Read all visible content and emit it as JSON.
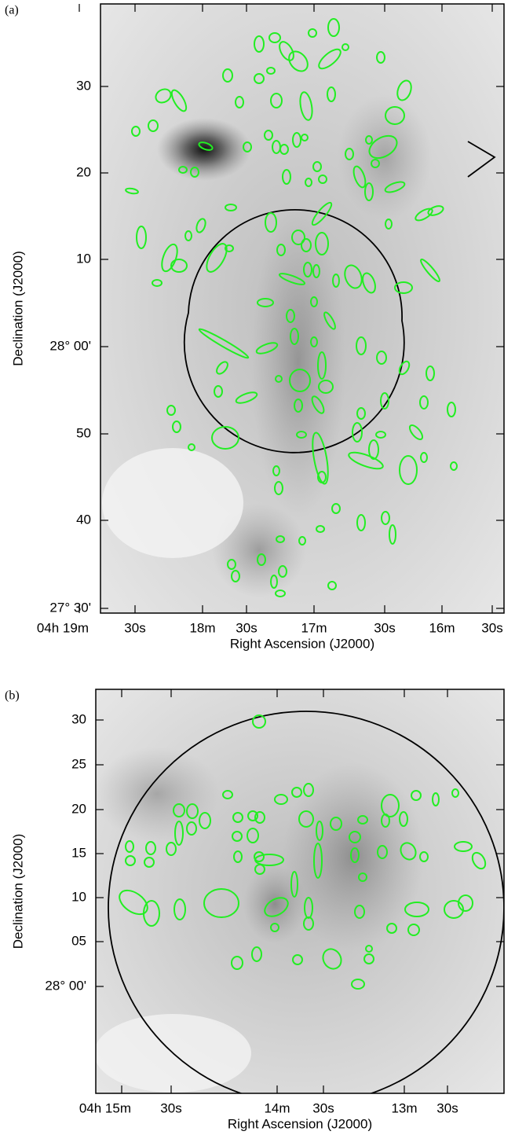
{
  "panels": [
    {
      "label": "(a)",
      "x_label": "Right Ascension (J2000)",
      "y_label": "Declination (J2000)",
      "x_ticks": [
        "04h 19m",
        "30s",
        "18m",
        "30s",
        "17m",
        "30s",
        "16m",
        "30s"
      ],
      "y_ticks": [
        "30",
        "20",
        "10",
        "28° 00'",
        "50",
        "40",
        "27° 30'"
      ]
    },
    {
      "label": "(b)",
      "x_label": "Right Ascension (J2000)",
      "y_label": "Declination (J2000)",
      "x_ticks": [
        "04h 15m",
        "30s",
        "14m",
        "30s",
        "13m",
        "30s"
      ],
      "y_ticks": [
        "30",
        "25",
        "20",
        "15",
        "10",
        "05",
        "28° 00'"
      ]
    }
  ]
}
